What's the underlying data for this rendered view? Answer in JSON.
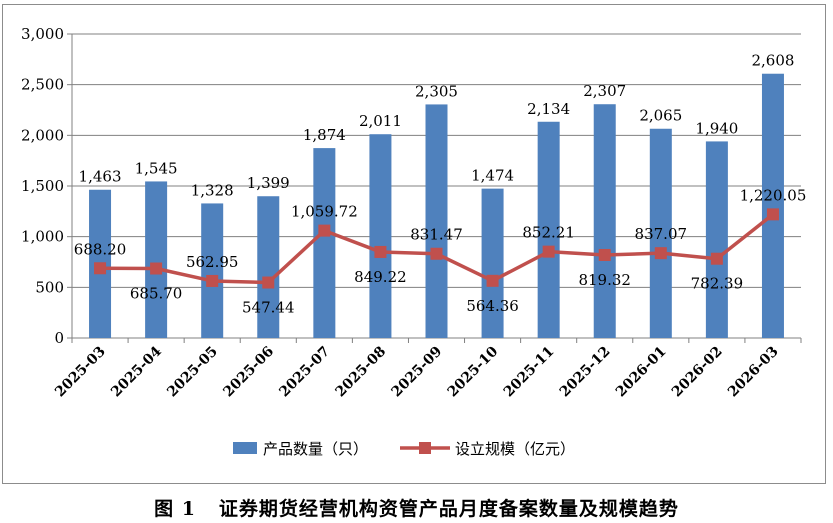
{
  "caption": "图 1   证券期货经营机构资管产品月度备案数量及规模趋势",
  "colors": {
    "bar": "#4f81bd",
    "line": "#c0504d",
    "grid": "#808080"
  },
  "chart_data": {
    "type": "bar",
    "categories": [
      "2025-03",
      "2025-04",
      "2025-05",
      "2025-06",
      "2025-07",
      "2025-08",
      "2025-09",
      "2025-10",
      "2025-11",
      "2025-12",
      "2026-01",
      "2026-02",
      "2026-03"
    ],
    "ylim": [
      0,
      3000
    ],
    "yticks": [
      0,
      500,
      1000,
      1500,
      2000,
      2500,
      3000
    ],
    "ytick_labels": [
      "0",
      "500",
      "1,000",
      "1,500",
      "2,000",
      "2,500",
      "3,000"
    ],
    "grid": true,
    "legend_position": "bottom",
    "series": [
      {
        "name": "产品数量（只）",
        "type": "bar",
        "values": [
          1463,
          1545,
          1328,
          1399,
          1874,
          2011,
          2305,
          1474,
          2134,
          2307,
          2065,
          1940,
          2608
        ],
        "labels": [
          "1,463",
          "1,545",
          "1,328",
          "1,399",
          "1,874",
          "2,011",
          "2,305",
          "1,474",
          "2,134",
          "2,307",
          "2,065",
          "1,940",
          "2,608"
        ]
      },
      {
        "name": "设立规模（亿元）",
        "type": "line",
        "values": [
          688.2,
          685.7,
          562.95,
          547.44,
          1059.72,
          849.22,
          831.47,
          564.36,
          852.21,
          819.32,
          837.07,
          782.39,
          1220.05
        ],
        "labels": [
          "688.20",
          "685.70",
          "562.95",
          "547.44",
          "1,059.72",
          "849.22",
          "831.47",
          "564.36",
          "852.21",
          "819.32",
          "837.07",
          "782.39",
          "1,220.05"
        ]
      }
    ]
  }
}
